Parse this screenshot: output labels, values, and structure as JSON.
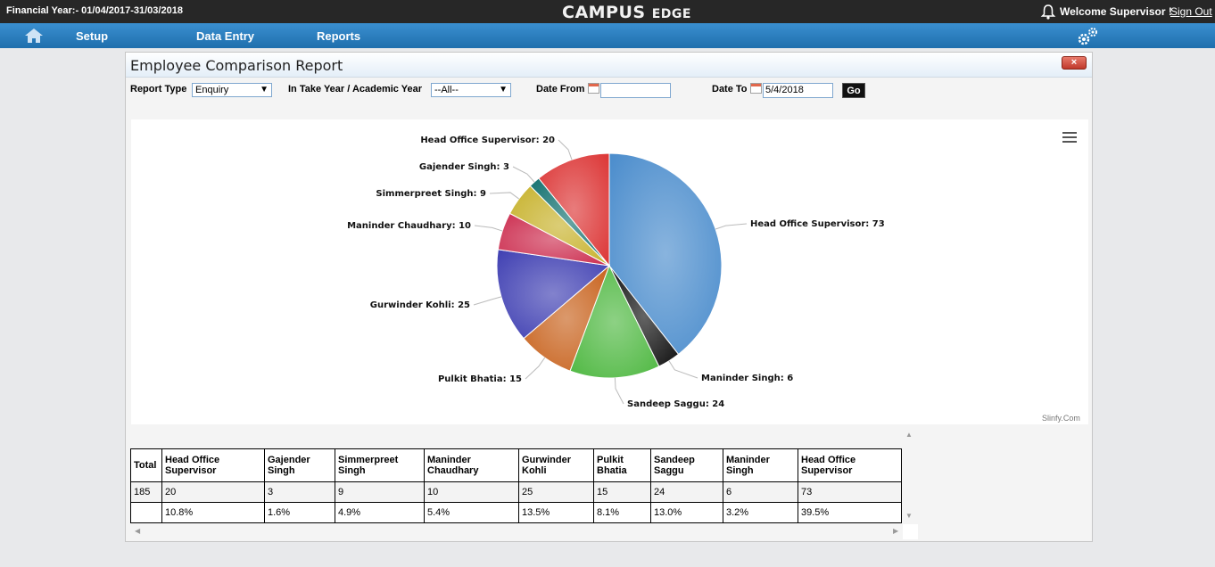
{
  "header": {
    "financial_year": "Financial Year:- 01/04/2017-31/03/2018",
    "brand_main": "CAMPUS",
    "brand_second": "EDGE",
    "welcome": "Welcome Supervisor !",
    "sign_out": "Sign Out"
  },
  "nav": {
    "items": [
      {
        "label": "Setup"
      },
      {
        "label": "Data Entry"
      },
      {
        "label": "Reports"
      }
    ]
  },
  "panel": {
    "title": "Employee Comparison Report",
    "close_label": "×"
  },
  "filters": {
    "report_type_label": "Report Type",
    "report_type_value": "Enquiry",
    "intake_label": "In Take Year / Academic Year",
    "intake_value": "--All--",
    "date_from_label": "Date From",
    "date_from_value": "",
    "date_to_label": "Date To",
    "date_to_value": "5/4/2018",
    "go_label": "Go"
  },
  "chart_data": {
    "type": "pie",
    "slices": [
      {
        "label": "Head Office Supervisor: 73",
        "name": "Head Office Supervisor",
        "value": 73,
        "color": "#4a8ccc"
      },
      {
        "label": "Maninder Singh: 6",
        "name": "Maninder Singh",
        "value": 6,
        "color": "#111111"
      },
      {
        "label": "Sandeep Saggu: 24",
        "name": "Sandeep Saggu",
        "value": 24,
        "color": "#4fb842"
      },
      {
        "label": "Pulkit Bhatia: 15",
        "name": "Pulkit Bhatia",
        "value": 15,
        "color": "#c8621d"
      },
      {
        "label": "Gurwinder Kohli: 25",
        "name": "Gurwinder Kohli",
        "value": 25,
        "color": "#3f3fb2"
      },
      {
        "label": "Maninder Chaudhary: 10",
        "name": "Maninder Chaudhary",
        "value": 10,
        "color": "#cc2d4f"
      },
      {
        "label": "Simmerpreet Singh: 9",
        "name": "Simmerpreet Singh",
        "value": 9,
        "color": "#c7b22c"
      },
      {
        "label": "Gajender Singh: 3",
        "name": "Gajender Singh",
        "value": 3,
        "color": "#137170"
      },
      {
        "label": "Head Office Supervisor: 20",
        "name": "Head Office Supervisor",
        "value": 20,
        "color": "#dc3535"
      }
    ],
    "credit": "Slinfy.Com"
  },
  "table": {
    "total_header": "Total",
    "columns": [
      "Head Office Supervisor",
      "Gajender Singh",
      "Simmerpreet Singh",
      "Maninder Chaudhary",
      "Gurwinder Kohli",
      "Pulkit Bhatia",
      "Sandeep Saggu",
      "Maninder Singh",
      "Head Office Supervisor"
    ],
    "count_row": {
      "total": "185",
      "values": [
        "20",
        "3",
        "9",
        "10",
        "25",
        "15",
        "24",
        "6",
        "73"
      ]
    },
    "percent_row": {
      "total": "",
      "values": [
        "10.8%",
        "1.6%",
        "4.9%",
        "5.4%",
        "13.5%",
        "8.1%",
        "13.0%",
        "3.2%",
        "39.5%"
      ]
    }
  }
}
